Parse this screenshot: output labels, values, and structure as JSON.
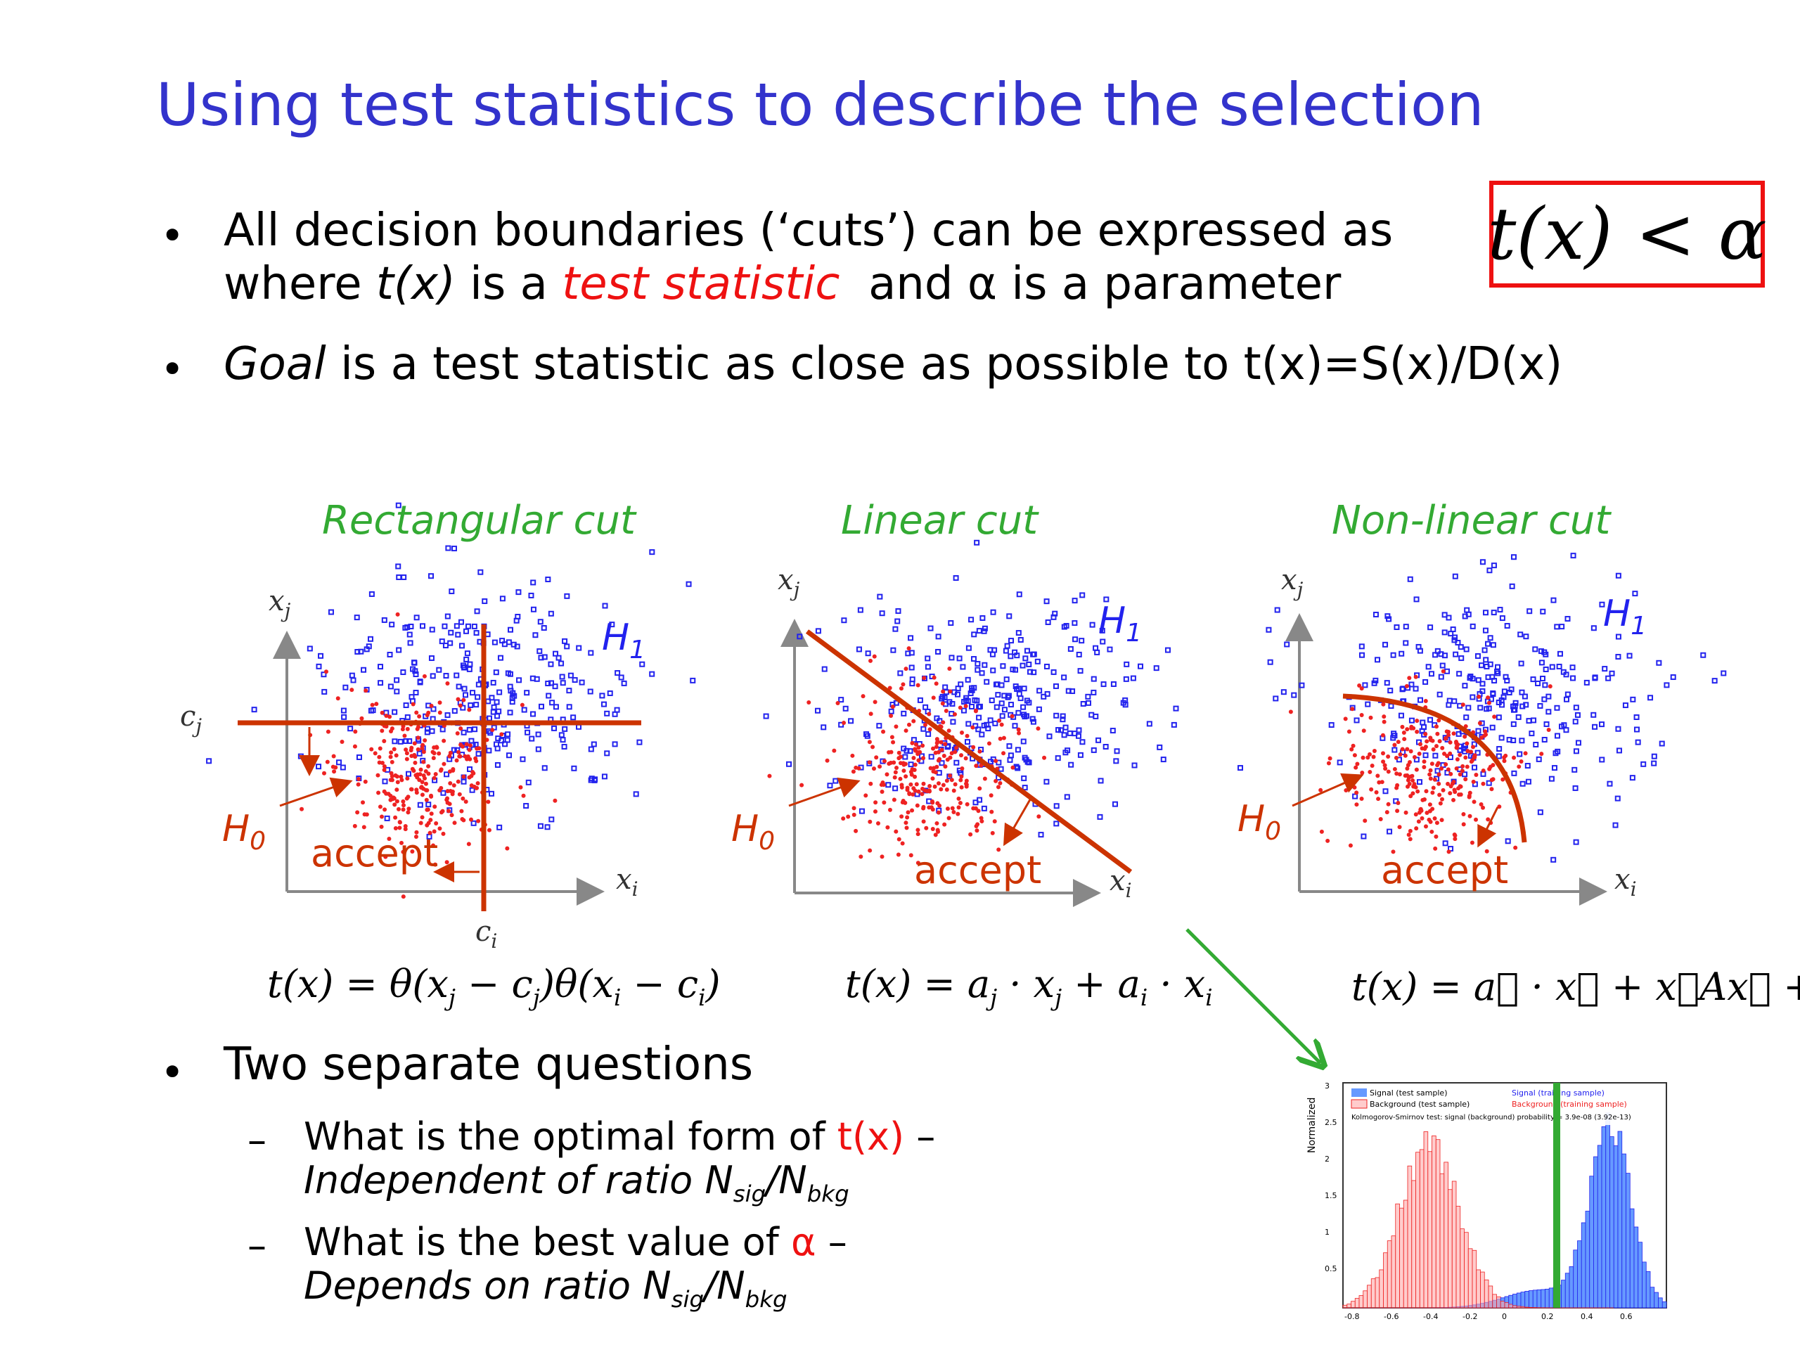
{
  "title": "Using test statistics to describe the selection",
  "bullets": {
    "b1_line1": "All decision boundaries (‘cuts’) can be expressed as",
    "b1_l2_pre": "where",
    "b1_l2_tx": "t(x)",
    "b1_l2_mid": "is a",
    "b1_l2_ts": "test statistic",
    "b1_l2_post": "and α is a parameter",
    "boxed_formula": "t(x) < α",
    "b2_goal": "Goal",
    "b2_rest": "is a test statistic as close as possible to t(x)=S(x)/D(x)"
  },
  "panels": [
    {
      "title": "Rectangular cut",
      "formula": "t(x) = θ(x_j − c_j)θ(x_i − c_i)"
    },
    {
      "title": "Linear cut",
      "formula": "t(x) = a_j · x_j + a_i · x_i"
    },
    {
      "title": "Non-linear cut",
      "formula": "t(x) = a⃗ · x⃗ + x⃗Ax⃗ + ..."
    }
  ],
  "plot_labels": {
    "xi": "x",
    "xi_sub": "i",
    "xj": "x",
    "xj_sub": "j",
    "h1": "H",
    "h1_sub": "1",
    "h0": "H",
    "h0_sub": "0",
    "accept": "accept",
    "cj": "c",
    "cj_sub": "j",
    "ci": "c",
    "ci_sub": "i"
  },
  "questions": {
    "heading": "Two separate questions",
    "q1_pre": "What is the optimal form of",
    "q1_red": "t(x)",
    "q1_post": "–",
    "q1_italic_pre": "Independent of ratio N",
    "q1_sub1": "sig",
    "q1_mid": "/N",
    "q1_sub2": "bkg",
    "q2_pre": "What is the best value of",
    "q2_red": "α",
    "q2_post": "–",
    "q2_italic_pre": "Depends on ratio N",
    "q2_sub1": "sig",
    "q2_mid": "/N",
    "q2_sub2": "bkg"
  },
  "histogram": {
    "ylabel": "Normalized",
    "ticks_y": [
      "3",
      "2.5",
      "2",
      "1.5",
      "1",
      "0.5"
    ],
    "ticks_x": [
      "-0.8",
      "-0.6",
      "-0.4",
      "-0.2",
      "0",
      "0.2",
      "0.4",
      "0.6"
    ],
    "legend1": "Signal (test sample)",
    "legend2": "Background (test sample)",
    "legend3": "Signal (training sample)",
    "legend4": "Background (training sample)",
    "ks": "Kolmogorov-Smirnov test: signal (background) probability = 3.9e-08 (3.92e-13)"
  },
  "colors": {
    "title": "#3333cc",
    "signal": "#2222ee",
    "background": "#ee2222",
    "cut": "#cc3300",
    "panel_title": "#33aa33",
    "box": "#ee1111"
  }
}
